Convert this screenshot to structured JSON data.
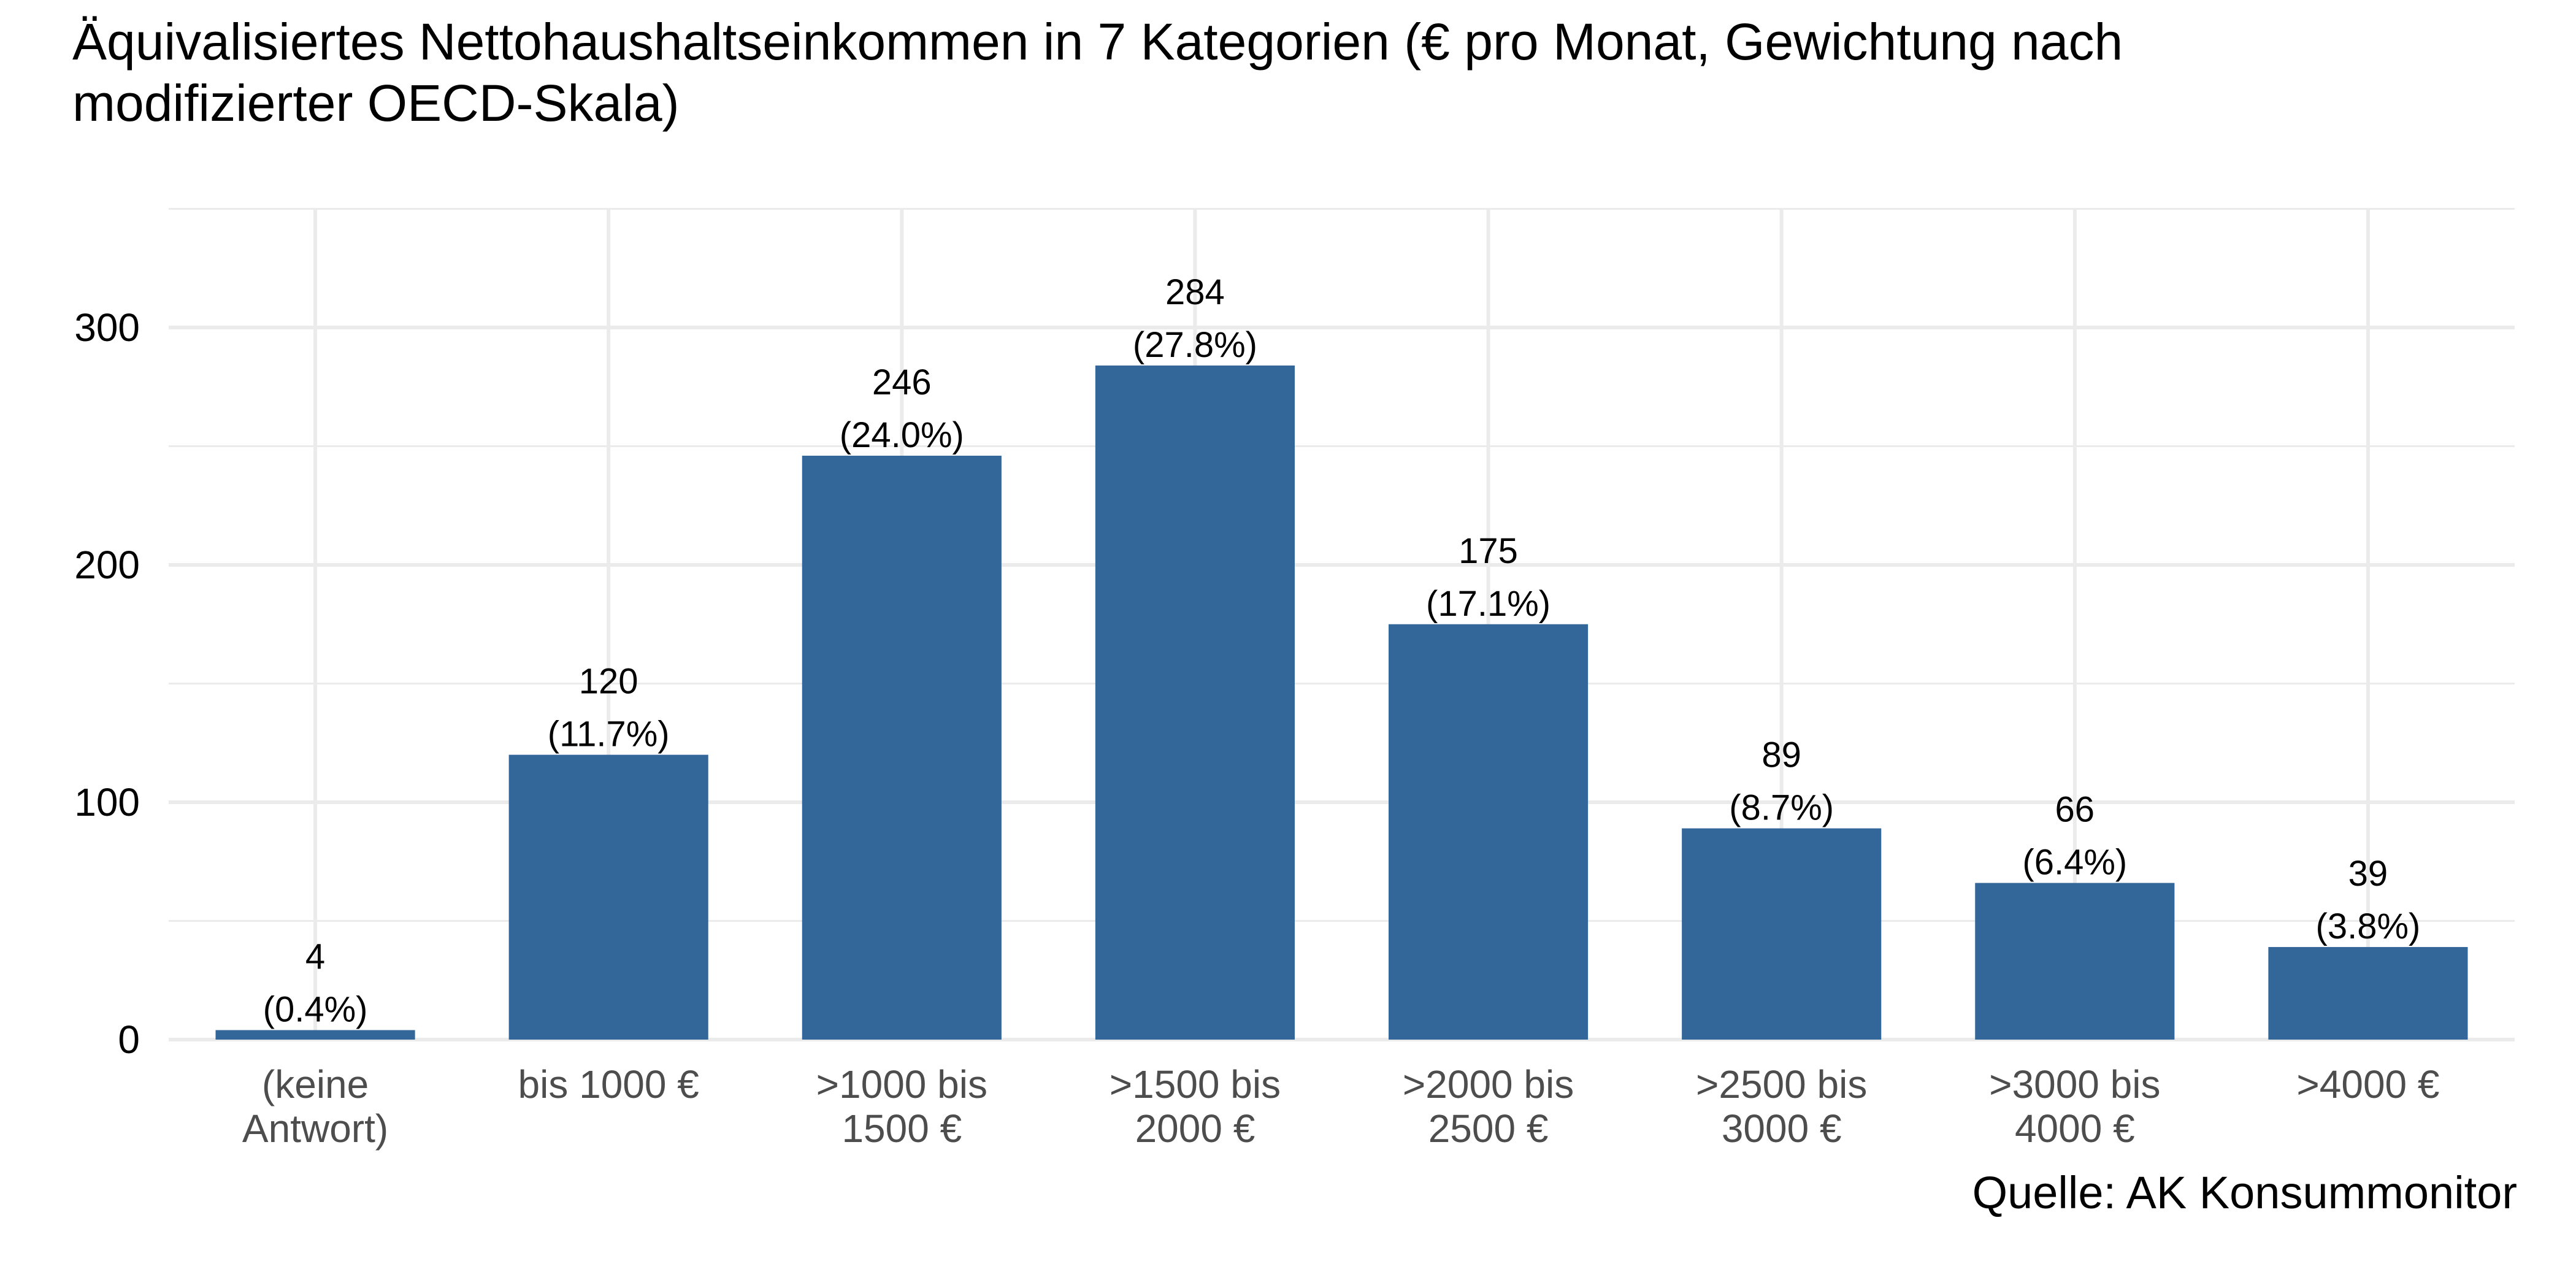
{
  "chart_data": {
    "type": "bar",
    "title_lines": [
      "Äquivalisiertes Nettohaushaltseinkommen in 7 Kategorien (€ pro Monat, Gewichtung nach",
      "modifizierter OECD-Skala)"
    ],
    "categories": [
      [
        "(keine",
        "Antwort)"
      ],
      [
        "bis 1000 €"
      ],
      [
        ">1000 bis",
        "1500 €"
      ],
      [
        ">1500 bis",
        "2000 €"
      ],
      [
        ">2000 bis",
        "2500 €"
      ],
      [
        ">2500 bis",
        "3000 €"
      ],
      [
        ">3000 bis",
        "4000 €"
      ],
      [
        ">4000 €"
      ]
    ],
    "values": [
      4,
      120,
      246,
      284,
      175,
      89,
      66,
      39
    ],
    "value_labels": [
      "4",
      "120",
      "246",
      "284",
      "175",
      "89",
      "66",
      "39"
    ],
    "percent_labels": [
      "(0.4%)",
      "(11.7%)",
      "(24.0%)",
      "(27.8%)",
      "(17.1%)",
      "(8.7%)",
      "(6.4%)",
      "(3.8%)"
    ],
    "y_ticks": [
      0,
      100,
      200,
      300
    ],
    "ylim": [
      0,
      350
    ],
    "xlabel": "",
    "ylabel": "",
    "grid": true,
    "bar_color": "#336699",
    "grid_color": "#ebebeb",
    "source": "Quelle: AK Konsummonitor"
  }
}
